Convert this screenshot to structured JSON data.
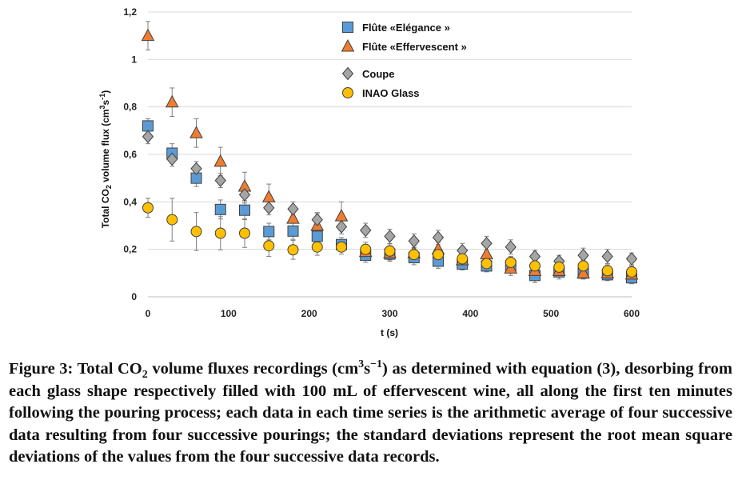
{
  "colors": {
    "square": "#5B9BD5",
    "triangle": "#ED7D31",
    "diamond": "#A5A5A5",
    "circle": "#FFC000",
    "gridline": "#D9D9D9",
    "errorbar": "#7F7F7F"
  },
  "chart_data": {
    "type": "scatter",
    "title": "",
    "xlabel": "t (s)",
    "ylabel_parts": {
      "a": "Total CO",
      "b": "2",
      "c": " volume flux (cm",
      "d": "3",
      "e": "s",
      "f": "-1",
      "g": ")"
    },
    "xlim": [
      0,
      600
    ],
    "ylim": [
      0,
      1.2
    ],
    "x_ticks": [
      "0",
      "100",
      "200",
      "300",
      "400",
      "500",
      "600"
    ],
    "y_ticks": [
      "0",
      "0,2",
      "0,4",
      "0,6",
      "0,8",
      "1",
      "1,2"
    ],
    "grid": "horizontal",
    "legend_position": "top-center",
    "x": [
      0,
      30,
      60,
      90,
      120,
      150,
      180,
      210,
      240,
      270,
      300,
      330,
      360,
      390,
      420,
      450,
      480,
      510,
      540,
      570,
      600
    ],
    "series": [
      {
        "name": "Flûte «Elégance »",
        "marker": "square",
        "values": [
          0.72,
          0.605,
          0.5,
          0.368,
          0.365,
          0.275,
          0.277,
          0.255,
          0.22,
          0.175,
          0.18,
          0.165,
          0.15,
          0.138,
          0.13,
          0.13,
          0.09,
          0.105,
          0.1,
          0.093,
          0.08
        ],
        "errors": [
          0.03,
          0.04,
          0.035,
          0.04,
          0.04,
          0.035,
          0.035,
          0.035,
          0.03,
          0.03,
          0.03,
          0.03,
          0.03,
          0.025,
          0.025,
          0.03,
          0.03,
          0.03,
          0.025,
          0.025,
          0.025
        ]
      },
      {
        "name": "Flûte «Effervescent »",
        "marker": "triangle",
        "values": [
          1.1,
          0.82,
          0.69,
          0.57,
          0.465,
          0.42,
          0.33,
          0.3,
          0.34,
          0.19,
          0.185,
          0.185,
          0.2,
          0.155,
          0.18,
          0.12,
          0.11,
          0.11,
          0.1,
          0.1,
          0.095
        ],
        "errors": [
          0.06,
          0.06,
          0.06,
          0.06,
          0.06,
          0.055,
          0.05,
          0.05,
          0.06,
          0.03,
          0.03,
          0.03,
          0.03,
          0.03,
          0.03,
          0.03,
          0.025,
          0.025,
          0.025,
          0.025,
          0.025
        ]
      },
      {
        "name": "Coupe",
        "marker": "diamond",
        "values": [
          0.675,
          0.58,
          0.54,
          0.49,
          0.43,
          0.375,
          0.37,
          0.325,
          0.295,
          0.28,
          0.255,
          0.235,
          0.25,
          0.195,
          0.225,
          0.21,
          0.17,
          0.15,
          0.175,
          0.17,
          0.16
        ],
        "errors": [
          0.03,
          0.03,
          0.03,
          0.03,
          0.035,
          0.03,
          0.03,
          0.03,
          0.03,
          0.03,
          0.03,
          0.03,
          0.03,
          0.03,
          0.03,
          0.03,
          0.025,
          0.025,
          0.03,
          0.03,
          0.025
        ]
      },
      {
        "name": "INAO Glass",
        "marker": "circle",
        "values": [
          0.375,
          0.325,
          0.275,
          0.268,
          0.268,
          0.215,
          0.198,
          0.21,
          0.21,
          0.2,
          0.193,
          0.178,
          0.178,
          0.16,
          0.14,
          0.145,
          0.13,
          0.125,
          0.13,
          0.11,
          0.105
        ],
        "errors": [
          0.04,
          0.09,
          0.08,
          0.07,
          0.06,
          0.045,
          0.04,
          0.035,
          0.03,
          0.03,
          0.03,
          0.03,
          0.03,
          0.025,
          0.025,
          0.025,
          0.025,
          0.025,
          0.025,
          0.025,
          0.025
        ]
      }
    ]
  },
  "caption": {
    "p1": "Figure 3: Total CO",
    "sub1": "2",
    "p2": " volume fluxes recordings (cm",
    "sup1": "3",
    "p3": "s",
    "sup2": "−1",
    "p4": ") as determined with equation (3), desorbing from each glass shape respectively filled with 100 mL of effervescent wine, all along the first ten minutes following the pouring process; each data in each time series is the arithmetic average of four successive data resulting from four successive pourings; the standard deviations represent the root mean square deviations of the values from the four successive data records."
  }
}
